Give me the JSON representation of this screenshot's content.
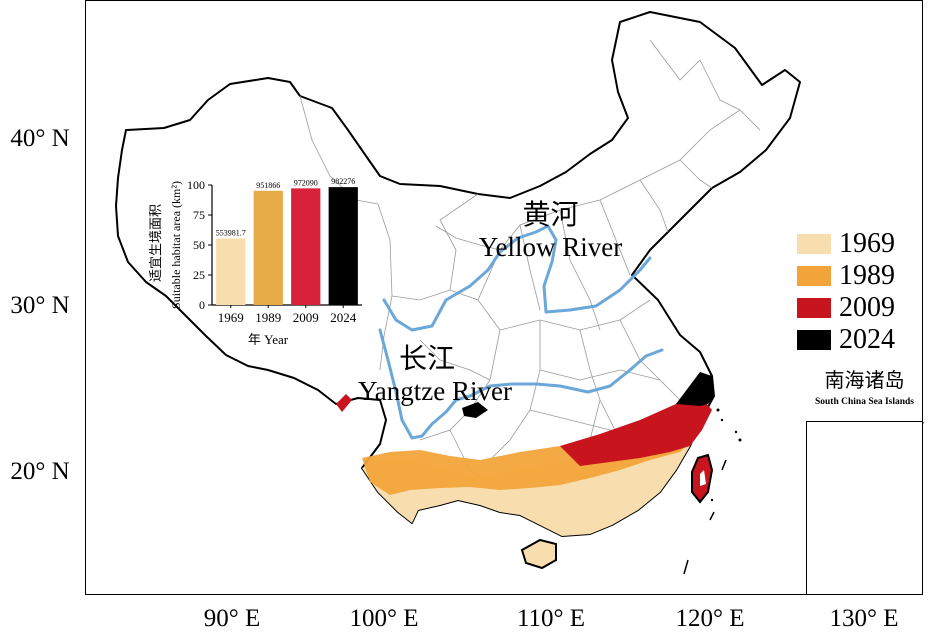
{
  "map": {
    "latitude_labels": [
      "40° N",
      "30° N",
      "20° N"
    ],
    "longitude_labels": [
      "90° E",
      "100° E",
      "110° E",
      "120° E",
      "130° E"
    ],
    "rivers": [
      {
        "name_cn": "黄河",
        "name_en": "Yellow River",
        "color": "#6ba7d8"
      },
      {
        "name_cn": "长江",
        "name_en": "Yangtze River",
        "color": "#6ba7d8"
      }
    ],
    "inset": {
      "title_cn": "南海诸岛",
      "title_en": "South China Sea Islands"
    }
  },
  "legend": {
    "items": [
      {
        "label": "1969",
        "color": "#f8deae"
      },
      {
        "label": "1989",
        "color": "#f2a43a"
      },
      {
        "label": "2009",
        "color": "#c8141c"
      },
      {
        "label": "2024",
        "color": "#000000"
      }
    ]
  },
  "chart_data": {
    "type": "bar",
    "categories": [
      "1969",
      "1989",
      "2009",
      "2024"
    ],
    "values": [
      553981.7,
      951866,
      972090,
      982276
    ],
    "bar_labels": [
      "553981.7",
      "951866",
      "972090",
      "982276"
    ],
    "bar_colors": [
      "#f8deae",
      "#e6aa47",
      "#d8223a",
      "#000000"
    ],
    "ylabel_cn": "适宜生境面积",
    "ylabel_en": "Suitable habitat area (km²)",
    "xlabel": "年 Year",
    "yticks": [
      0,
      25,
      50,
      75,
      100
    ],
    "ylim": [
      0,
      100
    ],
    "display_scale": 10000
  }
}
